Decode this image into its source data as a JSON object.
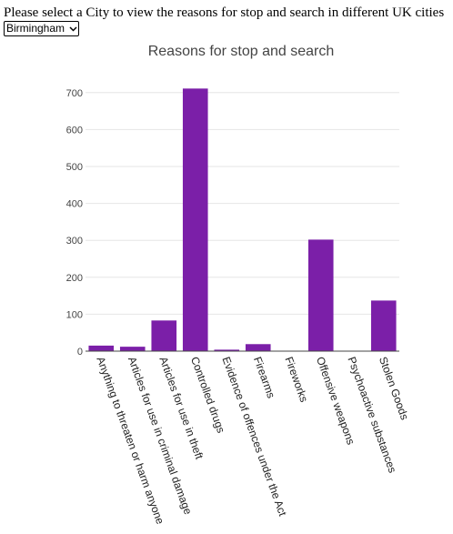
{
  "page": {
    "prompt": "Please select a City to view the reasons for stop and search in different UK cities"
  },
  "city_select": {
    "selected": "Birmingham",
    "icon": "chevron-down-icon"
  },
  "colors": {
    "bar": "#7b1fa8",
    "grid": "#e6e6e6",
    "text": "#444444",
    "title": "#444444"
  },
  "chart_data": {
    "type": "bar",
    "title": "Reasons for stop and search",
    "xlabel": "",
    "ylabel": "",
    "ylim": [
      0,
      720
    ],
    "yticks": [
      0,
      100,
      200,
      300,
      400,
      500,
      600,
      700
    ],
    "grid": true,
    "categories": [
      "Anything to threaten or harm anyone",
      "Articles for use in criminal damage",
      "Articles for use in theft",
      "Controlled drugs",
      "Evidence of offences under the Act",
      "Firearms",
      "Fireworks",
      "Offensive weapons",
      "Psychoactive substances",
      "Stolen Goods"
    ],
    "values": [
      15,
      12,
      83,
      711,
      4,
      19,
      0,
      302,
      0,
      137
    ]
  }
}
